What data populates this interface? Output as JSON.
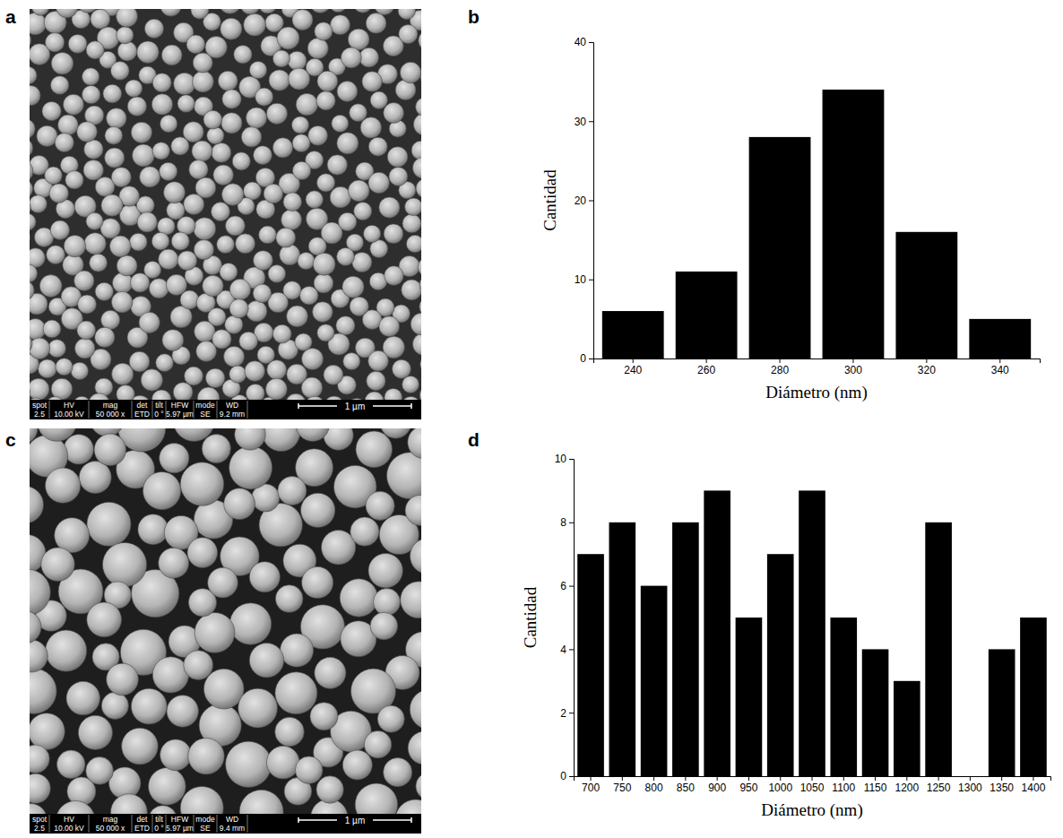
{
  "panel_labels": [
    "a",
    "b",
    "c",
    "d"
  ],
  "images": [
    {
      "info_header": [
        "spot",
        "HV",
        "mag",
        "det",
        "tilt",
        "HFW",
        "mode",
        "WD"
      ],
      "info_values": [
        "2.5",
        "10.00 kV",
        "50 000 x",
        "ETD",
        "0 °",
        "5.97 µm",
        "SE",
        "9.2 mm"
      ],
      "scale_bar": "1 µm"
    },
    {
      "info_header": [
        "spot",
        "HV",
        "mag",
        "det",
        "tilt",
        "HFW",
        "mode",
        "WD"
      ],
      "info_values": [
        "2.5",
        "10.00 kV",
        "50 000 x",
        "ETD",
        "0 °",
        "5.97 µm",
        "SE",
        "9.4 mm"
      ],
      "scale_bar": "1 µm"
    }
  ],
  "chart_data": [
    {
      "type": "bar",
      "xlabel": "Diámetro (nm)",
      "ylabel": "Cantidad",
      "categories": [
        "240",
        "260",
        "280",
        "300",
        "320",
        "340"
      ],
      "values": [
        6,
        11,
        28,
        34,
        16,
        5
      ],
      "color": "#000000",
      "ylim": [
        0,
        40
      ],
      "yticks": [
        0,
        10,
        20,
        30,
        40
      ],
      "grid": false
    },
    {
      "type": "bar",
      "xlabel": "Diámetro (nm)",
      "ylabel": "Cantidad",
      "categories": [
        "700",
        "750",
        "800",
        "850",
        "900",
        "950",
        "1000",
        "1050",
        "1100",
        "1150",
        "1200",
        "1250",
        "1300",
        "1350",
        "1400"
      ],
      "values": [
        7,
        8,
        6,
        8,
        9,
        5,
        7,
        9,
        5,
        4,
        3,
        8,
        0,
        4,
        5
      ],
      "color": "#000000",
      "ylim": [
        0,
        10
      ],
      "yticks": [
        0,
        2,
        4,
        6,
        8,
        10
      ],
      "grid": false
    }
  ]
}
